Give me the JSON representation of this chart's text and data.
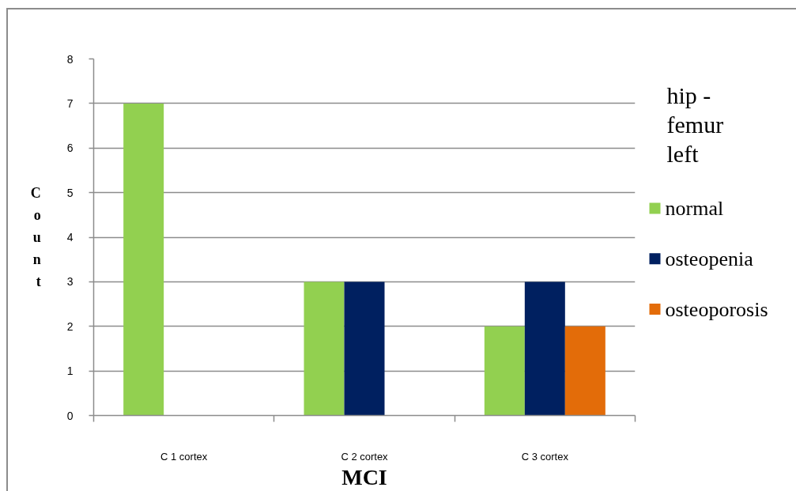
{
  "chart_data": {
    "type": "bar",
    "categories": [
      "C 1 cortex",
      "C 2 cortex",
      "C 3 cortex"
    ],
    "xlabel": "MCI",
    "ylabel": "Count",
    "legend_title": "hip - femur left",
    "series": [
      {
        "name": "normal",
        "color": "#92d050",
        "values": [
          7,
          3,
          2
        ]
      },
      {
        "name": "osteopenia",
        "color": "#002060",
        "values": [
          null,
          3,
          3
        ]
      },
      {
        "name": "osteoporosis",
        "color": "#e36c09",
        "values": [
          null,
          null,
          2
        ]
      }
    ],
    "ylim": [
      0,
      8
    ],
    "yticks": [
      0,
      1,
      2,
      3,
      4,
      5,
      6,
      7,
      8
    ],
    "grid": "y",
    "legend": "right"
  }
}
